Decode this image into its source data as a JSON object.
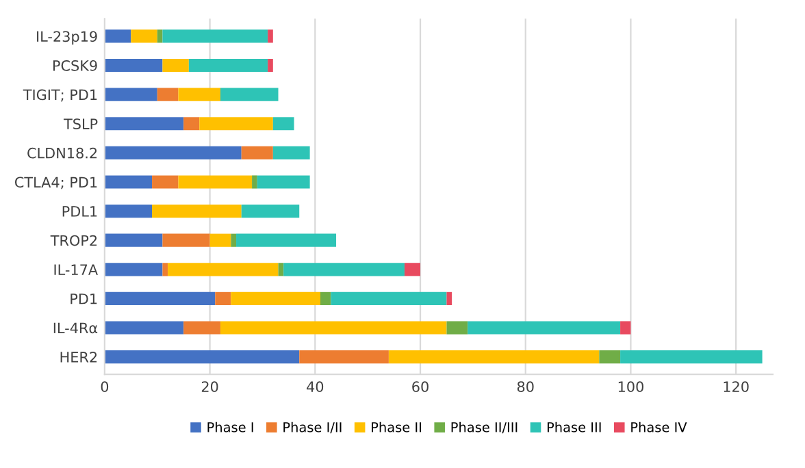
{
  "chart_data": {
    "type": "bar",
    "orientation": "horizontal",
    "stacked": true,
    "categories": [
      "IL-23p19",
      "PCSK9",
      "TIGIT; PD1",
      "TSLP",
      "CLDN18.2",
      "CTLA4; PD1",
      "PDL1",
      "TROP2",
      "IL-17A",
      "PD1",
      "IL-4Rα",
      "HER2"
    ],
    "series": [
      {
        "name": "Phase I",
        "color": "#4472c4",
        "values": [
          5,
          11,
          10,
          15,
          26,
          9,
          9,
          11,
          11,
          21,
          15,
          37
        ]
      },
      {
        "name": "Phase I/II",
        "color": "#ed7d31",
        "values": [
          0,
          0,
          4,
          3,
          6,
          5,
          0,
          9,
          1,
          3,
          7,
          17
        ]
      },
      {
        "name": "Phase II",
        "color": "#ffc000",
        "values": [
          5,
          5,
          8,
          14,
          0,
          14,
          17,
          4,
          21,
          17,
          43,
          40
        ]
      },
      {
        "name": "Phase II/III",
        "color": "#70ad47",
        "values": [
          1,
          0,
          0,
          0,
          0,
          1,
          0,
          1,
          1,
          2,
          4,
          4
        ]
      },
      {
        "name": "Phase III",
        "color": "#2ec4b6",
        "values": [
          20,
          15,
          11,
          4,
          7,
          10,
          11,
          19,
          23,
          22,
          29,
          27
        ]
      },
      {
        "name": "Phase IV",
        "color": "#e84a5f",
        "values": [
          1,
          1,
          0,
          0,
          0,
          0,
          0,
          0,
          3,
          1,
          2,
          0
        ]
      }
    ],
    "xlim": [
      0,
      127
    ],
    "xticks": [
      0,
      20,
      40,
      60,
      80,
      100,
      120
    ],
    "grid": "x",
    "legend": "bottom"
  }
}
